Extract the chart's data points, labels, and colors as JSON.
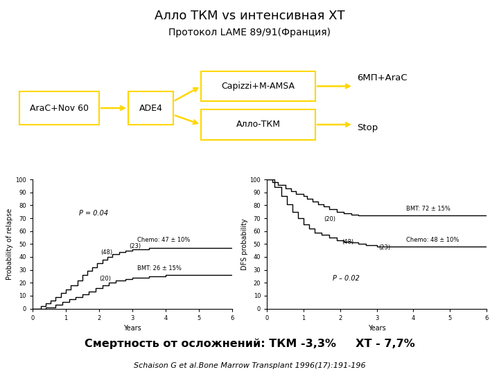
{
  "title": "Алло ТКМ vs интенсивная ХТ",
  "subtitle": "Протокол LAME 89/91(Франция)",
  "box1": "AraC+Nov 60",
  "box2": "ADE4",
  "box3": "Capizzi+M-AMSA",
  "box4": "Алло-ТКМ",
  "label_top": "6МП+AraC",
  "label_bottom": "Stop",
  "footer_bold": "Смертность от осложнений: ТКМ -3,3%     ХТ - 7,7%",
  "footer_italic": "Schaison G et al.Bone Marrow Transplant 1996(17):191-196",
  "box_color": "#FFD700",
  "bg_color": "#FFFFFF",
  "plot1": {
    "ylabel": "Probability of relapse",
    "xlabel": "Years",
    "pval": "P = 0.04",
    "chemo_label": "Chemo: 47 ± 10%",
    "bmt_label": "BMT: 26 ± 15%",
    "n_label_48": "(48)",
    "n_label_23": "(23)",
    "n_label_20": "(20)",
    "ylim": [
      0,
      100
    ],
    "xlim": [
      0,
      6
    ],
    "yticks": [
      0,
      10,
      20,
      30,
      40,
      50,
      60,
      70,
      80,
      90,
      100
    ],
    "xticks": [
      0,
      1,
      2,
      3,
      4,
      5,
      6
    ]
  },
  "plot2": {
    "ylabel": "DFS probability",
    "xlabel": "Years",
    "pval": "P – 0.02",
    "bmt_label": "BMT: 72 ± 15%",
    "chemo_label": "Chemo: 48 ± 10%",
    "n_label_20": "(20)",
    "n_label_48": "(48)",
    "n_label_23": "(23)",
    "ylim": [
      0,
      100
    ],
    "xlim": [
      0,
      6
    ],
    "yticks": [
      0,
      10,
      20,
      30,
      40,
      50,
      60,
      70,
      80,
      90,
      100
    ],
    "xticks": [
      0,
      1,
      2,
      3,
      4,
      5,
      6
    ]
  }
}
